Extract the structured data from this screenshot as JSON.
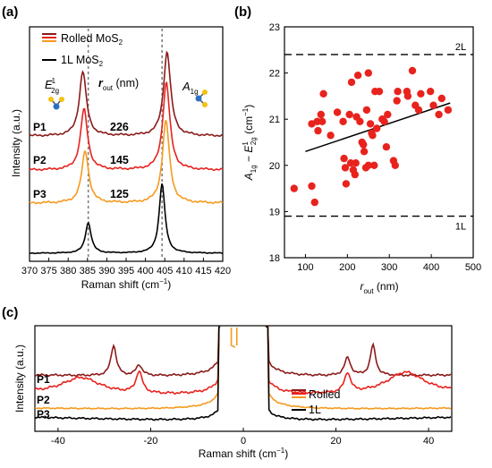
{
  "panel_labels": [
    "(a)",
    "(b)",
    "(c)"
  ],
  "colors": {
    "P1": "#8b1a1a",
    "P2": "#e8221e",
    "P3": "#f59a1e",
    "mono": "#000000",
    "scatter": "#e8231d",
    "fit": "#000000",
    "guide": "#808080"
  },
  "chart_data": [
    {
      "id": "a",
      "type": "line",
      "xlabel": "Raman shift (cm⁻¹)",
      "ylabel": "Intensity (a.u.)",
      "xlim": [
        370,
        420
      ],
      "xticks": [
        370,
        375,
        380,
        385,
        390,
        395,
        400,
        405,
        410,
        415,
        420
      ],
      "legend": {
        "position": "top-left",
        "entries": [
          "Rolled MoS2",
          "1L MoS2"
        ]
      },
      "peak_annotations": [
        {
          "label": "E12g",
          "x": 384
        },
        {
          "label": "A1g",
          "x": 405
        }
      ],
      "reference_lines_x": [
        385.2,
        404.3
      ],
      "column_header": "r_out (nm)",
      "series": [
        {
          "name": "P1",
          "r_out_nm": 226,
          "E12g_peak": 383.8,
          "A1g_peak": 405.6
        },
        {
          "name": "P2",
          "r_out_nm": 145,
          "E12g_peak": 384.1,
          "A1g_peak": 405.4
        },
        {
          "name": "P3",
          "r_out_nm": 125,
          "E12g_peak": 384.4,
          "A1g_peak": 405.3
        },
        {
          "name": "1L MoS2",
          "E12g_peak": 385.2,
          "A1g_peak": 404.3
        }
      ]
    },
    {
      "id": "b",
      "type": "scatter",
      "xlabel": "r_out (nm)",
      "ylabel": "A1g − E12g (cm⁻¹)",
      "xlim": [
        50,
        500
      ],
      "ylim": [
        18,
        23
      ],
      "xticks": [
        100,
        200,
        300,
        400,
        500
      ],
      "yticks": [
        18,
        19,
        20,
        21,
        22,
        23
      ],
      "reference_lines": [
        {
          "label": "2L",
          "y": 22.4
        },
        {
          "label": "1L",
          "y": 18.9
        }
      ],
      "fit": {
        "x": [
          100,
          445
        ],
        "y": [
          20.3,
          21.35
        ]
      },
      "points": [
        [
          73,
          19.5
        ],
        [
          115,
          19.55
        ],
        [
          122,
          19.2
        ],
        [
          115,
          20.9
        ],
        [
          128,
          20.95
        ],
        [
          130,
          20.75
        ],
        [
          137,
          21.1
        ],
        [
          143,
          21.55
        ],
        [
          140,
          20.95
        ],
        [
          160,
          20.65
        ],
        [
          176,
          21.15
        ],
        [
          190,
          20.95
        ],
        [
          192,
          20.15
        ],
        [
          195,
          19.95
        ],
        [
          197,
          19.6
        ],
        [
          205,
          21.1
        ],
        [
          210,
          21.8
        ],
        [
          208,
          20.05
        ],
        [
          214,
          19.9
        ],
        [
          218,
          19.8
        ],
        [
          220,
          20.05
        ],
        [
          222,
          21.05
        ],
        [
          225,
          21.95
        ],
        [
          230,
          20.95
        ],
        [
          235,
          20.5
        ],
        [
          238,
          20.45
        ],
        [
          240,
          20.3
        ],
        [
          244,
          19.95
        ],
        [
          246,
          21.2
        ],
        [
          250,
          22.0
        ],
        [
          250,
          20.0
        ],
        [
          255,
          20.9
        ],
        [
          258,
          20.7
        ],
        [
          260,
          20.65
        ],
        [
          264,
          20.0
        ],
        [
          266,
          21.6
        ],
        [
          270,
          20.8
        ],
        [
          276,
          21.6
        ],
        [
          283,
          21.0
        ],
        [
          288,
          20.95
        ],
        [
          293,
          20.4
        ],
        [
          296,
          21.1
        ],
        [
          310,
          20.1
        ],
        [
          314,
          20.0
        ],
        [
          318,
          21.4
        ],
        [
          320,
          21.6
        ],
        [
          342,
          21.6
        ],
        [
          344,
          21.5
        ],
        [
          355,
          22.05
        ],
        [
          362,
          21.3
        ],
        [
          370,
          21.2
        ],
        [
          375,
          21.55
        ],
        [
          398,
          21.6
        ],
        [
          405,
          21.3
        ],
        [
          418,
          21.1
        ],
        [
          425,
          21.45
        ],
        [
          440,
          21.2
        ]
      ]
    },
    {
      "id": "c",
      "type": "line",
      "xlabel": "Raman shift (cm⁻¹)",
      "ylabel": "Intensity (a.u.)",
      "xlim": [
        -45,
        45
      ],
      "xticks": [
        -40,
        -20,
        0,
        20,
        40
      ],
      "legend": {
        "position": "bottom-right",
        "entries": [
          "Rolled",
          "1L"
        ]
      },
      "series": [
        {
          "name": "P1",
          "peaks": [
            -28,
            -22.5,
            22.5,
            28
          ]
        },
        {
          "name": "P2",
          "peaks": [
            -35,
            -22.5,
            22.5,
            35
          ]
        },
        {
          "name": "P3",
          "peaks": []
        },
        {
          "name": "1L",
          "peaks": []
        }
      ]
    }
  ],
  "texts": {
    "a_rout_values": [
      "226",
      "145",
      "125"
    ],
    "a_label_E": "E",
    "a_label_E_sup": "1",
    "a_label_E_sub": "2g",
    "a_label_A": "A",
    "a_label_A_sub": "1g",
    "a_rout_head": "r",
    "a_rout_sub": "out",
    "a_rout_unit": " (nm)",
    "a_legend_rolled_main": "Rolled MoS",
    "a_legend_rolled_sub": "2",
    "a_legend_1l_main": "1L MoS",
    "a_legend_1l_sub": "2",
    "b_xlabel_r": "r",
    "b_xlabel_sub": "out",
    "b_xlabel_unit": " (nm)",
    "b_ylabel_A": "A",
    "b_ylabel_A_sub": "1g",
    "b_ylabel_minus": " − ",
    "b_ylabel_E": "E",
    "b_ylabel_E_sup": "1",
    "b_ylabel_E_sub": "2g",
    "b_ylabel_unit": " (cm",
    "b_ylabel_unit_sup": "−1",
    "b_ylabel_unit_close": ")",
    "raman_main": "Raman shift (cm",
    "raman_sup": "−1",
    "raman_close": ")",
    "intensity": "Intensity (a.u.)",
    "c_legend_rolled": "Rolled",
    "c_legend_1l": "1L"
  }
}
